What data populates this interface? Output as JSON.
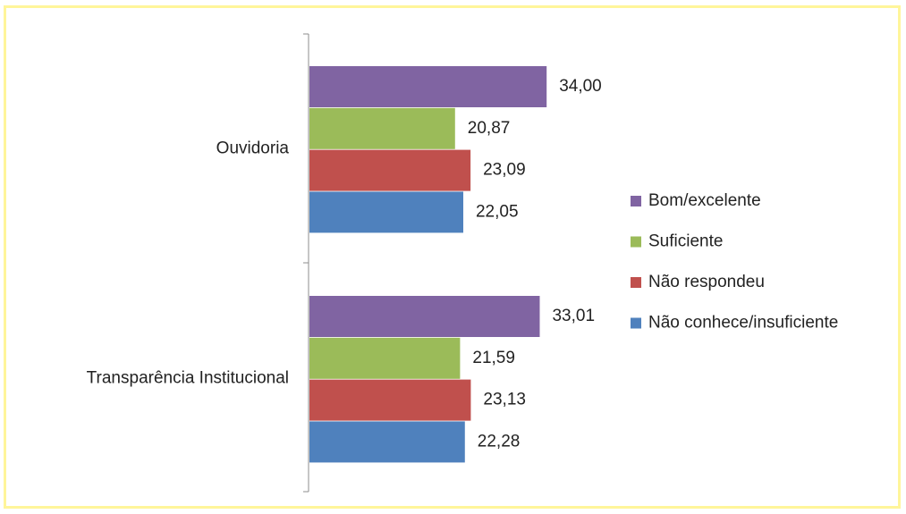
{
  "chart_data": {
    "type": "bar",
    "orientation": "horizontal",
    "categories": [
      "Ouvidoria",
      "Transparência Institucional"
    ],
    "series": [
      {
        "name": "Bom/excelente",
        "color": "#8064a2",
        "values": [
          34.0,
          33.01
        ],
        "labels": [
          "34,00",
          "33,01"
        ]
      },
      {
        "name": "Suficiente",
        "color": "#9bbb59",
        "values": [
          20.87,
          21.59
        ],
        "labels": [
          "20,87",
          "21,59"
        ]
      },
      {
        "name": "Não respondeu",
        "color": "#c0504d",
        "values": [
          23.09,
          23.13
        ],
        "labels": [
          "23,09",
          "23,13"
        ]
      },
      {
        "name": "Não conhece/insuficiente",
        "color": "#4f81bd",
        "values": [
          22.05,
          22.28
        ],
        "labels": [
          "22,05",
          "22,28"
        ]
      }
    ],
    "title": "",
    "xlabel": "",
    "ylabel": "",
    "xlim": [
      0,
      40
    ],
    "grid": false,
    "legend": "right",
    "border_color": "#fff59a"
  }
}
